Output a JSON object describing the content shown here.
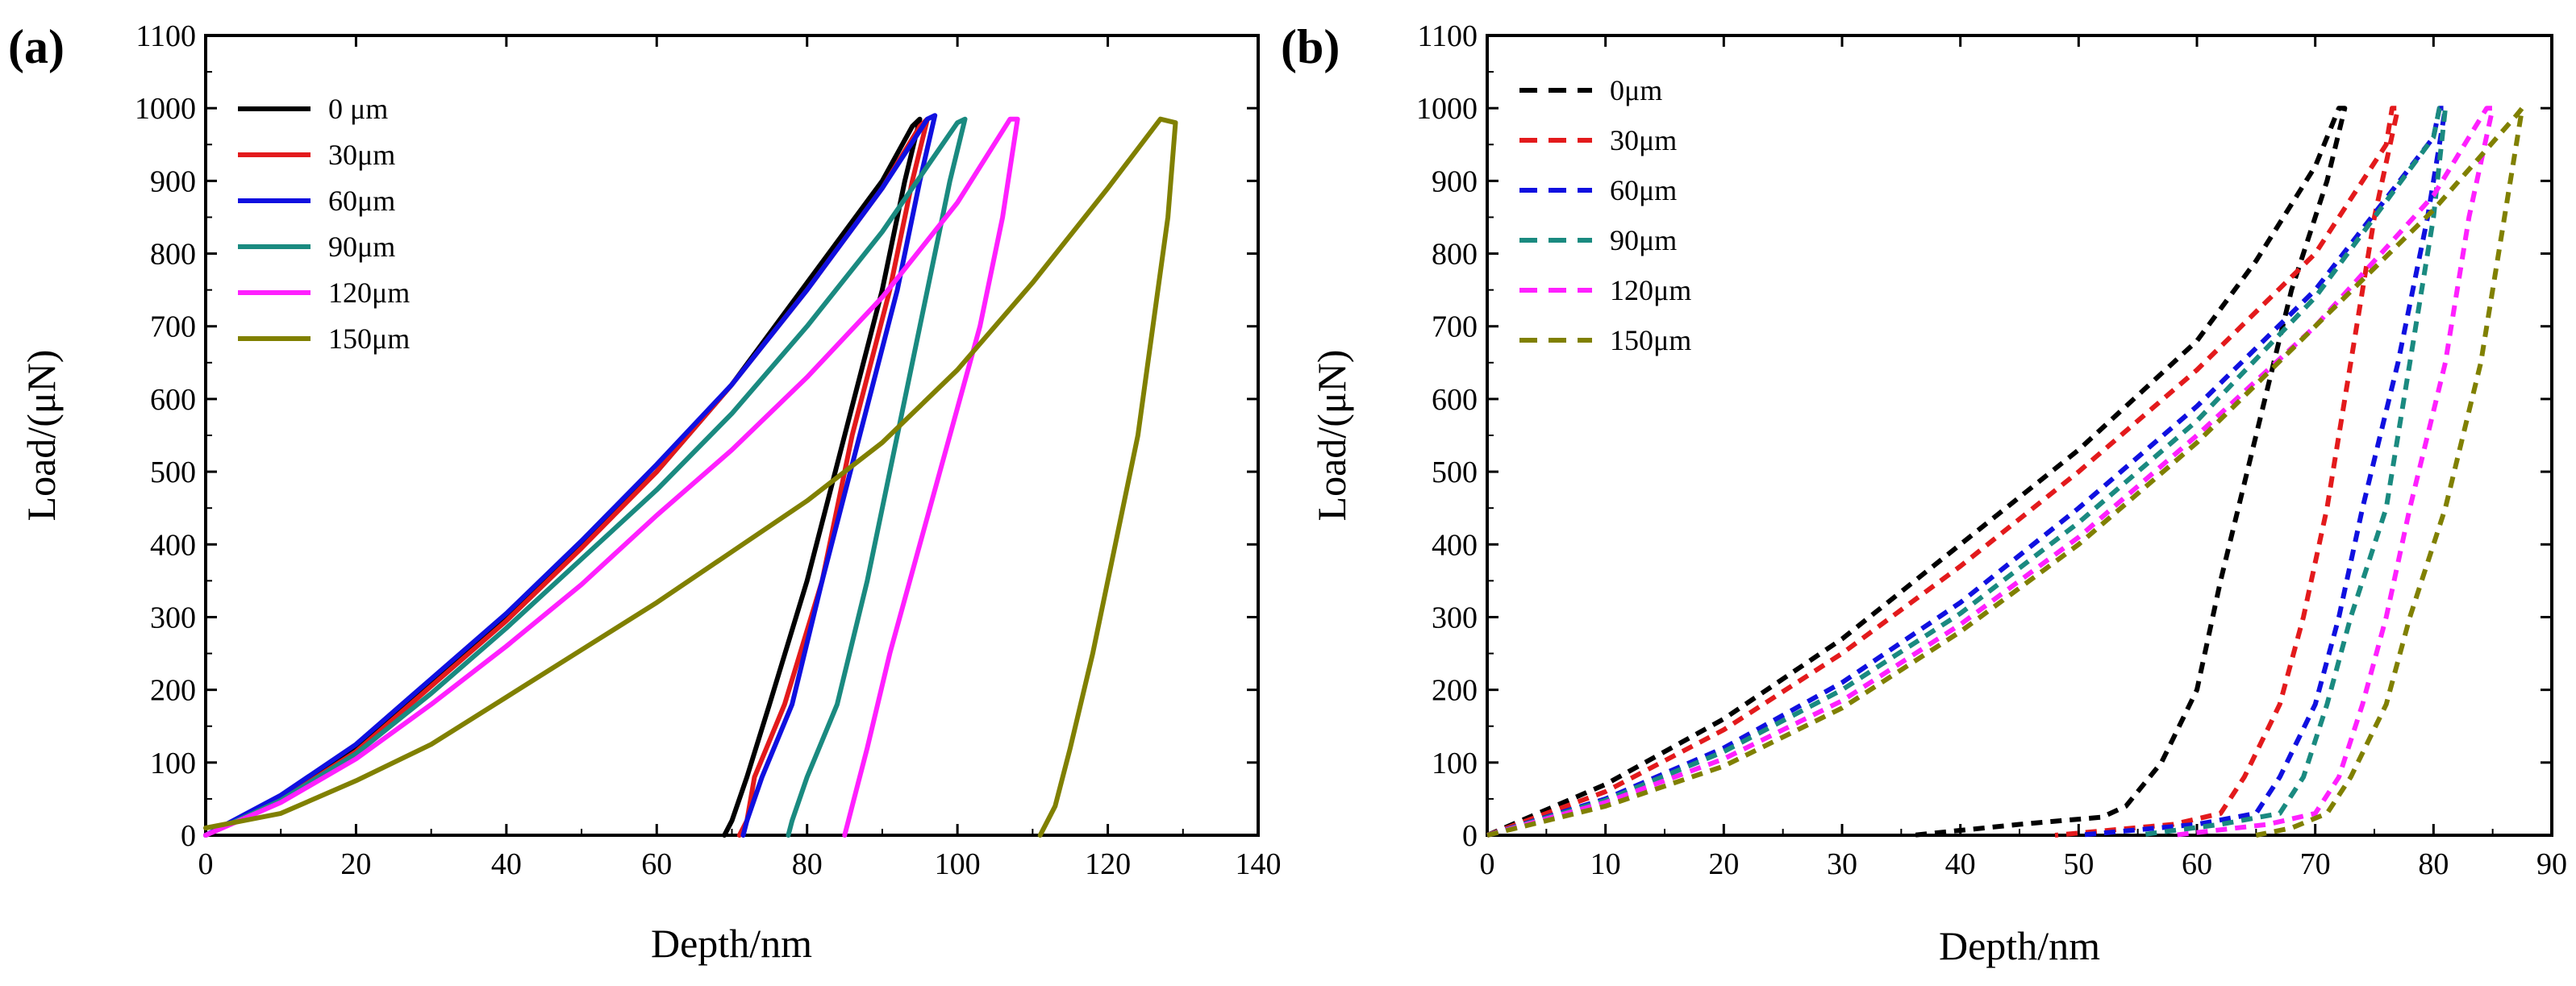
{
  "chart_data": [
    {
      "panel_label": "(a)",
      "type": "line",
      "xlabel": "Depth/nm",
      "ylabel": "Load/(μN)",
      "xlim": [
        0,
        140
      ],
      "ylim": [
        0,
        1100
      ],
      "xticks": [
        "0",
        "20",
        "40",
        "60",
        "80",
        "100",
        "120",
        "140"
      ],
      "yticks": [
        "0",
        "100",
        "200",
        "300",
        "400",
        "500",
        "600",
        "700",
        "800",
        "900",
        "1000",
        "1100"
      ],
      "legend_position": "top-left",
      "line_style": "solid",
      "series": [
        {
          "name": "0 μm",
          "color": "#000000",
          "loading": [
            [
              0,
              0
            ],
            [
              10,
              50
            ],
            [
              20,
              120
            ],
            [
              30,
              210
            ],
            [
              40,
              300
            ],
            [
              50,
              400
            ],
            [
              60,
              500
            ],
            [
              70,
              620
            ],
            [
              80,
              760
            ],
            [
              90,
              900
            ],
            [
              94,
              975
            ]
          ],
          "top": [
            95,
            985
          ],
          "unloading": [
            [
              95,
              985
            ],
            [
              93,
              900
            ],
            [
              90,
              750
            ],
            [
              85,
              550
            ],
            [
              80,
              350
            ],
            [
              75,
              180
            ],
            [
              72,
              80
            ],
            [
              70,
              20
            ],
            [
              69,
              0
            ]
          ]
        },
        {
          "name": "30μm",
          "color": "#e31a1c",
          "loading": [
            [
              0,
              0
            ],
            [
              10,
              48
            ],
            [
              20,
              115
            ],
            [
              30,
              205
            ],
            [
              40,
              295
            ],
            [
              50,
              395
            ],
            [
              60,
              500
            ],
            [
              70,
              620
            ],
            [
              80,
              750
            ],
            [
              90,
              890
            ],
            [
              95,
              975
            ]
          ],
          "top": [
            96,
            985
          ],
          "unloading": [
            [
              96,
              985
            ],
            [
              94,
              900
            ],
            [
              91,
              750
            ],
            [
              86,
              550
            ],
            [
              82,
              350
            ],
            [
              77,
              180
            ],
            [
              73,
              80
            ],
            [
              72,
              20
            ],
            [
              71,
              0
            ]
          ]
        },
        {
          "name": "60μm",
          "color": "#1010e0",
          "loading": [
            [
              0,
              0
            ],
            [
              10,
              55
            ],
            [
              20,
              125
            ],
            [
              30,
              215
            ],
            [
              40,
              305
            ],
            [
              50,
              405
            ],
            [
              60,
              510
            ],
            [
              70,
              620
            ],
            [
              80,
              750
            ],
            [
              90,
              890
            ],
            [
              96,
              985
            ]
          ],
          "top": [
            97,
            990
          ],
          "unloading": [
            [
              97,
              990
            ],
            [
              95,
              900
            ],
            [
              92,
              750
            ],
            [
              87,
              550
            ],
            [
              82,
              350
            ],
            [
              78,
              180
            ],
            [
              74,
              80
            ],
            [
              72,
              20
            ],
            [
              71.5,
              0
            ]
          ]
        },
        {
          "name": "90μm",
          "color": "#1a8a80",
          "loading": [
            [
              0,
              0
            ],
            [
              10,
              48
            ],
            [
              20,
              112
            ],
            [
              30,
              195
            ],
            [
              40,
              285
            ],
            [
              50,
              380
            ],
            [
              60,
              475
            ],
            [
              70,
              580
            ],
            [
              80,
              700
            ],
            [
              90,
              830
            ],
            [
              100,
              980
            ]
          ],
          "top": [
            101,
            985
          ],
          "unloading": [
            [
              101,
              985
            ],
            [
              99,
              900
            ],
            [
              96,
              750
            ],
            [
              92,
              550
            ],
            [
              88,
              350
            ],
            [
              84,
              180
            ],
            [
              80,
              80
            ],
            [
              78,
              20
            ],
            [
              77.5,
              0
            ]
          ]
        },
        {
          "name": "120μm",
          "color": "#ff20ff",
          "loading": [
            [
              0,
              0
            ],
            [
              10,
              45
            ],
            [
              20,
              105
            ],
            [
              30,
              180
            ],
            [
              40,
              260
            ],
            [
              50,
              345
            ],
            [
              60,
              440
            ],
            [
              70,
              530
            ],
            [
              80,
              630
            ],
            [
              90,
              740
            ],
            [
              100,
              870
            ],
            [
              107,
              985
            ]
          ],
          "top": [
            108,
            985
          ],
          "unloading": [
            [
              108,
              985
            ],
            [
              106,
              850
            ],
            [
              103,
              700
            ],
            [
              99,
              550
            ],
            [
              95,
              400
            ],
            [
              91,
              250
            ],
            [
              88,
              120
            ],
            [
              86,
              40
            ],
            [
              85,
              0
            ]
          ]
        },
        {
          "name": "150μm",
          "color": "#808000",
          "loading": [
            [
              0,
              10
            ],
            [
              10,
              30
            ],
            [
              20,
              75
            ],
            [
              30,
              125
            ],
            [
              40,
              190
            ],
            [
              50,
              255
            ],
            [
              60,
              320
            ],
            [
              70,
              390
            ],
            [
              80,
              460
            ],
            [
              90,
              540
            ],
            [
              100,
              640
            ],
            [
              110,
              760
            ],
            [
              120,
              890
            ],
            [
              127,
              985
            ]
          ],
          "top": [
            129,
            980
          ],
          "unloading": [
            [
              129,
              980
            ],
            [
              128,
              850
            ],
            [
              126,
              700
            ],
            [
              124,
              550
            ],
            [
              121,
              400
            ],
            [
              118,
              250
            ],
            [
              115,
              120
            ],
            [
              113,
              40
            ],
            [
              111,
              0
            ]
          ]
        }
      ]
    },
    {
      "panel_label": "(b)",
      "type": "line",
      "xlabel": "Depth/nm",
      "ylabel": "Load/(μN)",
      "xlim": [
        0,
        90
      ],
      "ylim": [
        0,
        1100
      ],
      "xticks": [
        "0",
        "10",
        "20",
        "30",
        "40",
        "50",
        "60",
        "70",
        "80",
        "90"
      ],
      "yticks": [
        "0",
        "100",
        "200",
        "300",
        "400",
        "500",
        "600",
        "700",
        "800",
        "900",
        "1000",
        "1100"
      ],
      "legend_position": "top-left",
      "line_style": "dashed",
      "series": [
        {
          "name": "0μm",
          "color": "#000000",
          "loading": [
            [
              0,
              0
            ],
            [
              10,
              70
            ],
            [
              20,
              160
            ],
            [
              30,
              270
            ],
            [
              40,
              400
            ],
            [
              50,
              530
            ],
            [
              60,
              680
            ],
            [
              65,
              790
            ],
            [
              70,
              920
            ],
            [
              72,
              1000
            ]
          ],
          "top": [
            72.5,
            1000
          ],
          "unloading": [
            [
              72.5,
              1000
            ],
            [
              71,
              900
            ],
            [
              68,
              750
            ],
            [
              65,
              550
            ],
            [
              62,
              350
            ],
            [
              60,
              200
            ],
            [
              57,
              100
            ],
            [
              54,
              40
            ],
            [
              52,
              25
            ],
            [
              45,
              15
            ],
            [
              36,
              0
            ]
          ]
        },
        {
          "name": "30μm",
          "color": "#e31a1c",
          "loading": [
            [
              0,
              0
            ],
            [
              10,
              60
            ],
            [
              20,
              145
            ],
            [
              30,
              250
            ],
            [
              40,
              370
            ],
            [
              50,
              500
            ],
            [
              60,
              640
            ],
            [
              70,
              800
            ],
            [
              76,
              950
            ],
            [
              76.5,
              1000
            ]
          ],
          "top": [
            77,
            1000
          ],
          "unloading": [
            [
              77,
              1000
            ],
            [
              75,
              850
            ],
            [
              73,
              650
            ],
            [
              71,
              450
            ],
            [
              69,
              300
            ],
            [
              67,
              180
            ],
            [
              64,
              80
            ],
            [
              62,
              30
            ],
            [
              58,
              15
            ],
            [
              48,
              0
            ]
          ]
        },
        {
          "name": "60μm",
          "color": "#1010e0",
          "loading": [
            [
              0,
              0
            ],
            [
              10,
              50
            ],
            [
              20,
              120
            ],
            [
              30,
              210
            ],
            [
              40,
              320
            ],
            [
              50,
              450
            ],
            [
              60,
              590
            ],
            [
              70,
              750
            ],
            [
              80,
              960
            ],
            [
              80.5,
              1000
            ]
          ],
          "top": [
            81,
            1000
          ],
          "unloading": [
            [
              81,
              1000
            ],
            [
              79.5,
              850
            ],
            [
              77,
              650
            ],
            [
              74,
              450
            ],
            [
              72,
              300
            ],
            [
              70,
              180
            ],
            [
              67,
              80
            ],
            [
              65,
              30
            ],
            [
              60,
              15
            ],
            [
              50,
              0
            ]
          ]
        },
        {
          "name": "90μm",
          "color": "#1a8a80",
          "loading": [
            [
              0,
              0
            ],
            [
              10,
              48
            ],
            [
              20,
              115
            ],
            [
              30,
              200
            ],
            [
              40,
              305
            ],
            [
              50,
              430
            ],
            [
              60,
              570
            ],
            [
              70,
              740
            ],
            [
              80,
              960
            ],
            [
              80.5,
              1000
            ]
          ],
          "top": [
            81,
            1000
          ],
          "unloading": [
            [
              81,
              1000
            ],
            [
              80,
              850
            ],
            [
              78,
              650
            ],
            [
              76,
              450
            ],
            [
              73,
              300
            ],
            [
              71,
              180
            ],
            [
              69,
              80
            ],
            [
              67,
              30
            ],
            [
              62,
              15
            ],
            [
              55,
              0
            ]
          ]
        },
        {
          "name": "120μm",
          "color": "#ff20ff",
          "loading": [
            [
              0,
              0
            ],
            [
              10,
              45
            ],
            [
              20,
              105
            ],
            [
              30,
              185
            ],
            [
              40,
              290
            ],
            [
              50,
              410
            ],
            [
              60,
              550
            ],
            [
              70,
              700
            ],
            [
              80,
              880
            ],
            [
              84.5,
              1000
            ]
          ],
          "top": [
            85,
            1000
          ],
          "unloading": [
            [
              85,
              1000
            ],
            [
              83,
              850
            ],
            [
              81,
              650
            ],
            [
              78,
              450
            ],
            [
              76,
              300
            ],
            [
              74,
              180
            ],
            [
              72,
              80
            ],
            [
              70,
              30
            ],
            [
              66,
              15
            ],
            [
              58,
              0
            ]
          ]
        },
        {
          "name": "150μm",
          "color": "#808000",
          "loading": [
            [
              0,
              0
            ],
            [
              10,
              40
            ],
            [
              20,
              95
            ],
            [
              30,
              175
            ],
            [
              40,
              280
            ],
            [
              50,
              400
            ],
            [
              60,
              540
            ],
            [
              70,
              700
            ],
            [
              80,
              860
            ],
            [
              87,
              990
            ]
          ],
          "top": [
            87.5,
            1000
          ],
          "unloading": [
            [
              87.5,
              1000
            ],
            [
              86,
              850
            ],
            [
              84,
              650
            ],
            [
              81,
              450
            ],
            [
              78,
              300
            ],
            [
              76,
              180
            ],
            [
              73,
              80
            ],
            [
              71,
              30
            ],
            [
              68,
              10
            ],
            [
              65,
              0
            ]
          ]
        }
      ]
    }
  ]
}
